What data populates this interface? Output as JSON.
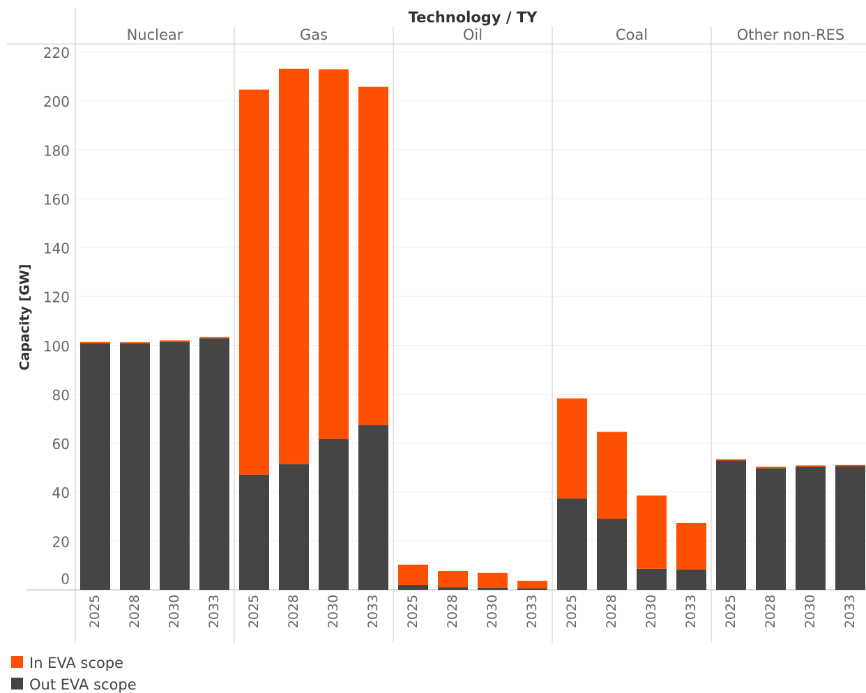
{
  "chart_data": {
    "type": "stacked_bar",
    "x_label": "Technology / TY",
    "y_label": "Capacity [GW]",
    "groups": [
      "Nuclear",
      "Gas",
      "Oil",
      "Coal",
      "Other non-RES"
    ],
    "categories": [
      "2025",
      "2028",
      "2030",
      "2033",
      "2025",
      "2028",
      "2030",
      "2033",
      "2025",
      "2028",
      "2030",
      "2033",
      "2025",
      "2028",
      "2030",
      "2033",
      "2025",
      "2028",
      "2030",
      "2033"
    ],
    "series": [
      {
        "name": "Out EVA scope",
        "color": "#454545",
        "values": [
          100.9,
          100.9,
          101.4,
          102.9,
          47.1,
          51.4,
          61.7,
          67.4,
          2.0,
          1.1,
          0.9,
          0.6,
          37.4,
          29.1,
          8.6,
          8.3,
          52.9,
          49.7,
          50.3,
          50.6
        ]
      },
      {
        "name": "In EVA scope",
        "color": "#ff4f00",
        "values": [
          0.5,
          0.4,
          0.6,
          0.5,
          157.5,
          161.7,
          151.2,
          138.3,
          8.3,
          6.6,
          6.0,
          3.1,
          40.9,
          35.5,
          30.0,
          19.1,
          0.5,
          0.6,
          0.6,
          0.5
        ]
      }
    ],
    "legend_order": [
      1,
      0
    ],
    "ylim": [
      0,
      223
    ],
    "yticks": [
      0,
      20,
      40,
      60,
      80,
      100,
      120,
      140,
      160,
      180,
      200,
      220
    ],
    "grid": true
  }
}
